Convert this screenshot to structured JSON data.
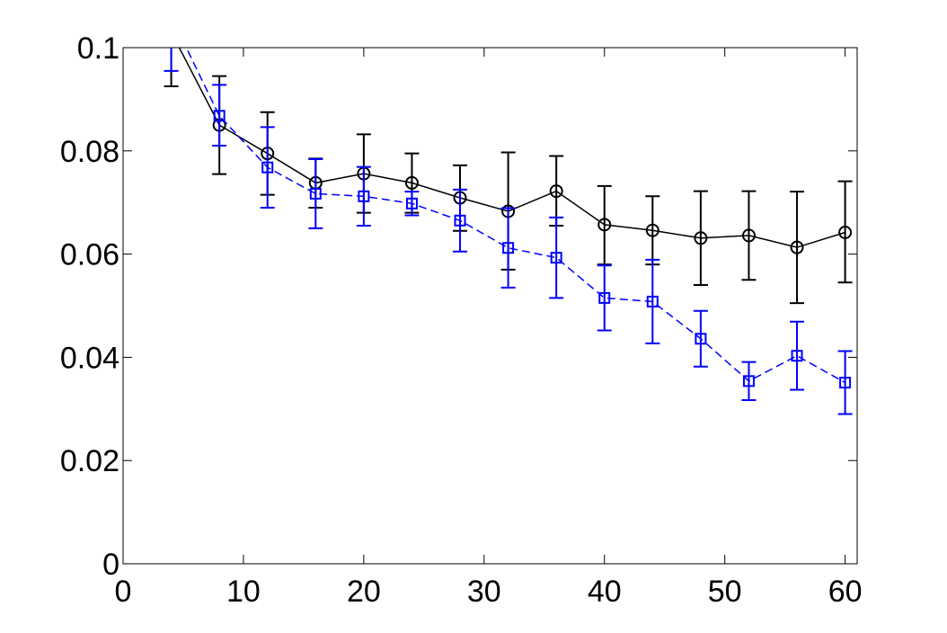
{
  "chart_data": {
    "type": "line",
    "title": "",
    "xlabel": "",
    "ylabel": "",
    "xlim": [
      0,
      61
    ],
    "ylim": [
      0,
      0.1
    ],
    "grid": false,
    "legend": "none",
    "x_ticks": [
      0,
      10,
      20,
      30,
      40,
      50,
      60
    ],
    "x_tick_labels": [
      "0",
      "10",
      "20",
      "30",
      "40",
      "50",
      "60"
    ],
    "y_ticks": [
      0,
      0.02,
      0.04,
      0.06,
      0.08,
      0.1
    ],
    "y_tick_labels": [
      "0",
      "0.02",
      "0.04",
      "0.06",
      "0.08",
      "0.1"
    ],
    "x": [
      4,
      8,
      12,
      16,
      20,
      24,
      28,
      32,
      36,
      40,
      44,
      48,
      52,
      56,
      60
    ],
    "series": [
      {
        "color": "#000000",
        "line_style": "solid",
        "marker": "circle",
        "values": [
          0.103,
          0.085,
          0.0795,
          0.0738,
          0.0756,
          0.0738,
          0.0709,
          0.0683,
          0.0722,
          0.0657,
          0.0646,
          0.0631,
          0.0636,
          0.0613,
          0.0642
        ],
        "lower": [
          0.0925,
          0.0755,
          0.0715,
          0.069,
          0.068,
          0.068,
          0.0645,
          0.057,
          0.0655,
          0.058,
          0.058,
          0.054,
          0.055,
          0.0505,
          0.0545
        ],
        "upper": [
          0.1135,
          0.0945,
          0.0875,
          0.0785,
          0.0832,
          0.0795,
          0.0772,
          0.0797,
          0.079,
          0.0732,
          0.0712,
          0.0722,
          0.0722,
          0.0721,
          0.0741
        ]
      },
      {
        "color": "#0000ff",
        "line_style": "dashed",
        "marker": "square",
        "values": [
          0.106,
          0.0868,
          0.0768,
          0.0717,
          0.0712,
          0.0698,
          0.0665,
          0.0612,
          0.0593,
          0.0515,
          0.0508,
          0.0436,
          0.0354,
          0.0403,
          0.0351
        ],
        "lower": [
          0.0955,
          0.081,
          0.069,
          0.065,
          0.0655,
          0.0675,
          0.0605,
          0.0535,
          0.0515,
          0.0452,
          0.0427,
          0.0382,
          0.0317,
          0.0337,
          0.029
        ],
        "upper": [
          0.1165,
          0.0928,
          0.0846,
          0.0784,
          0.0769,
          0.0721,
          0.0725,
          0.0689,
          0.0671,
          0.0578,
          0.0589,
          0.049,
          0.0391,
          0.0469,
          0.0412
        ]
      }
    ]
  }
}
